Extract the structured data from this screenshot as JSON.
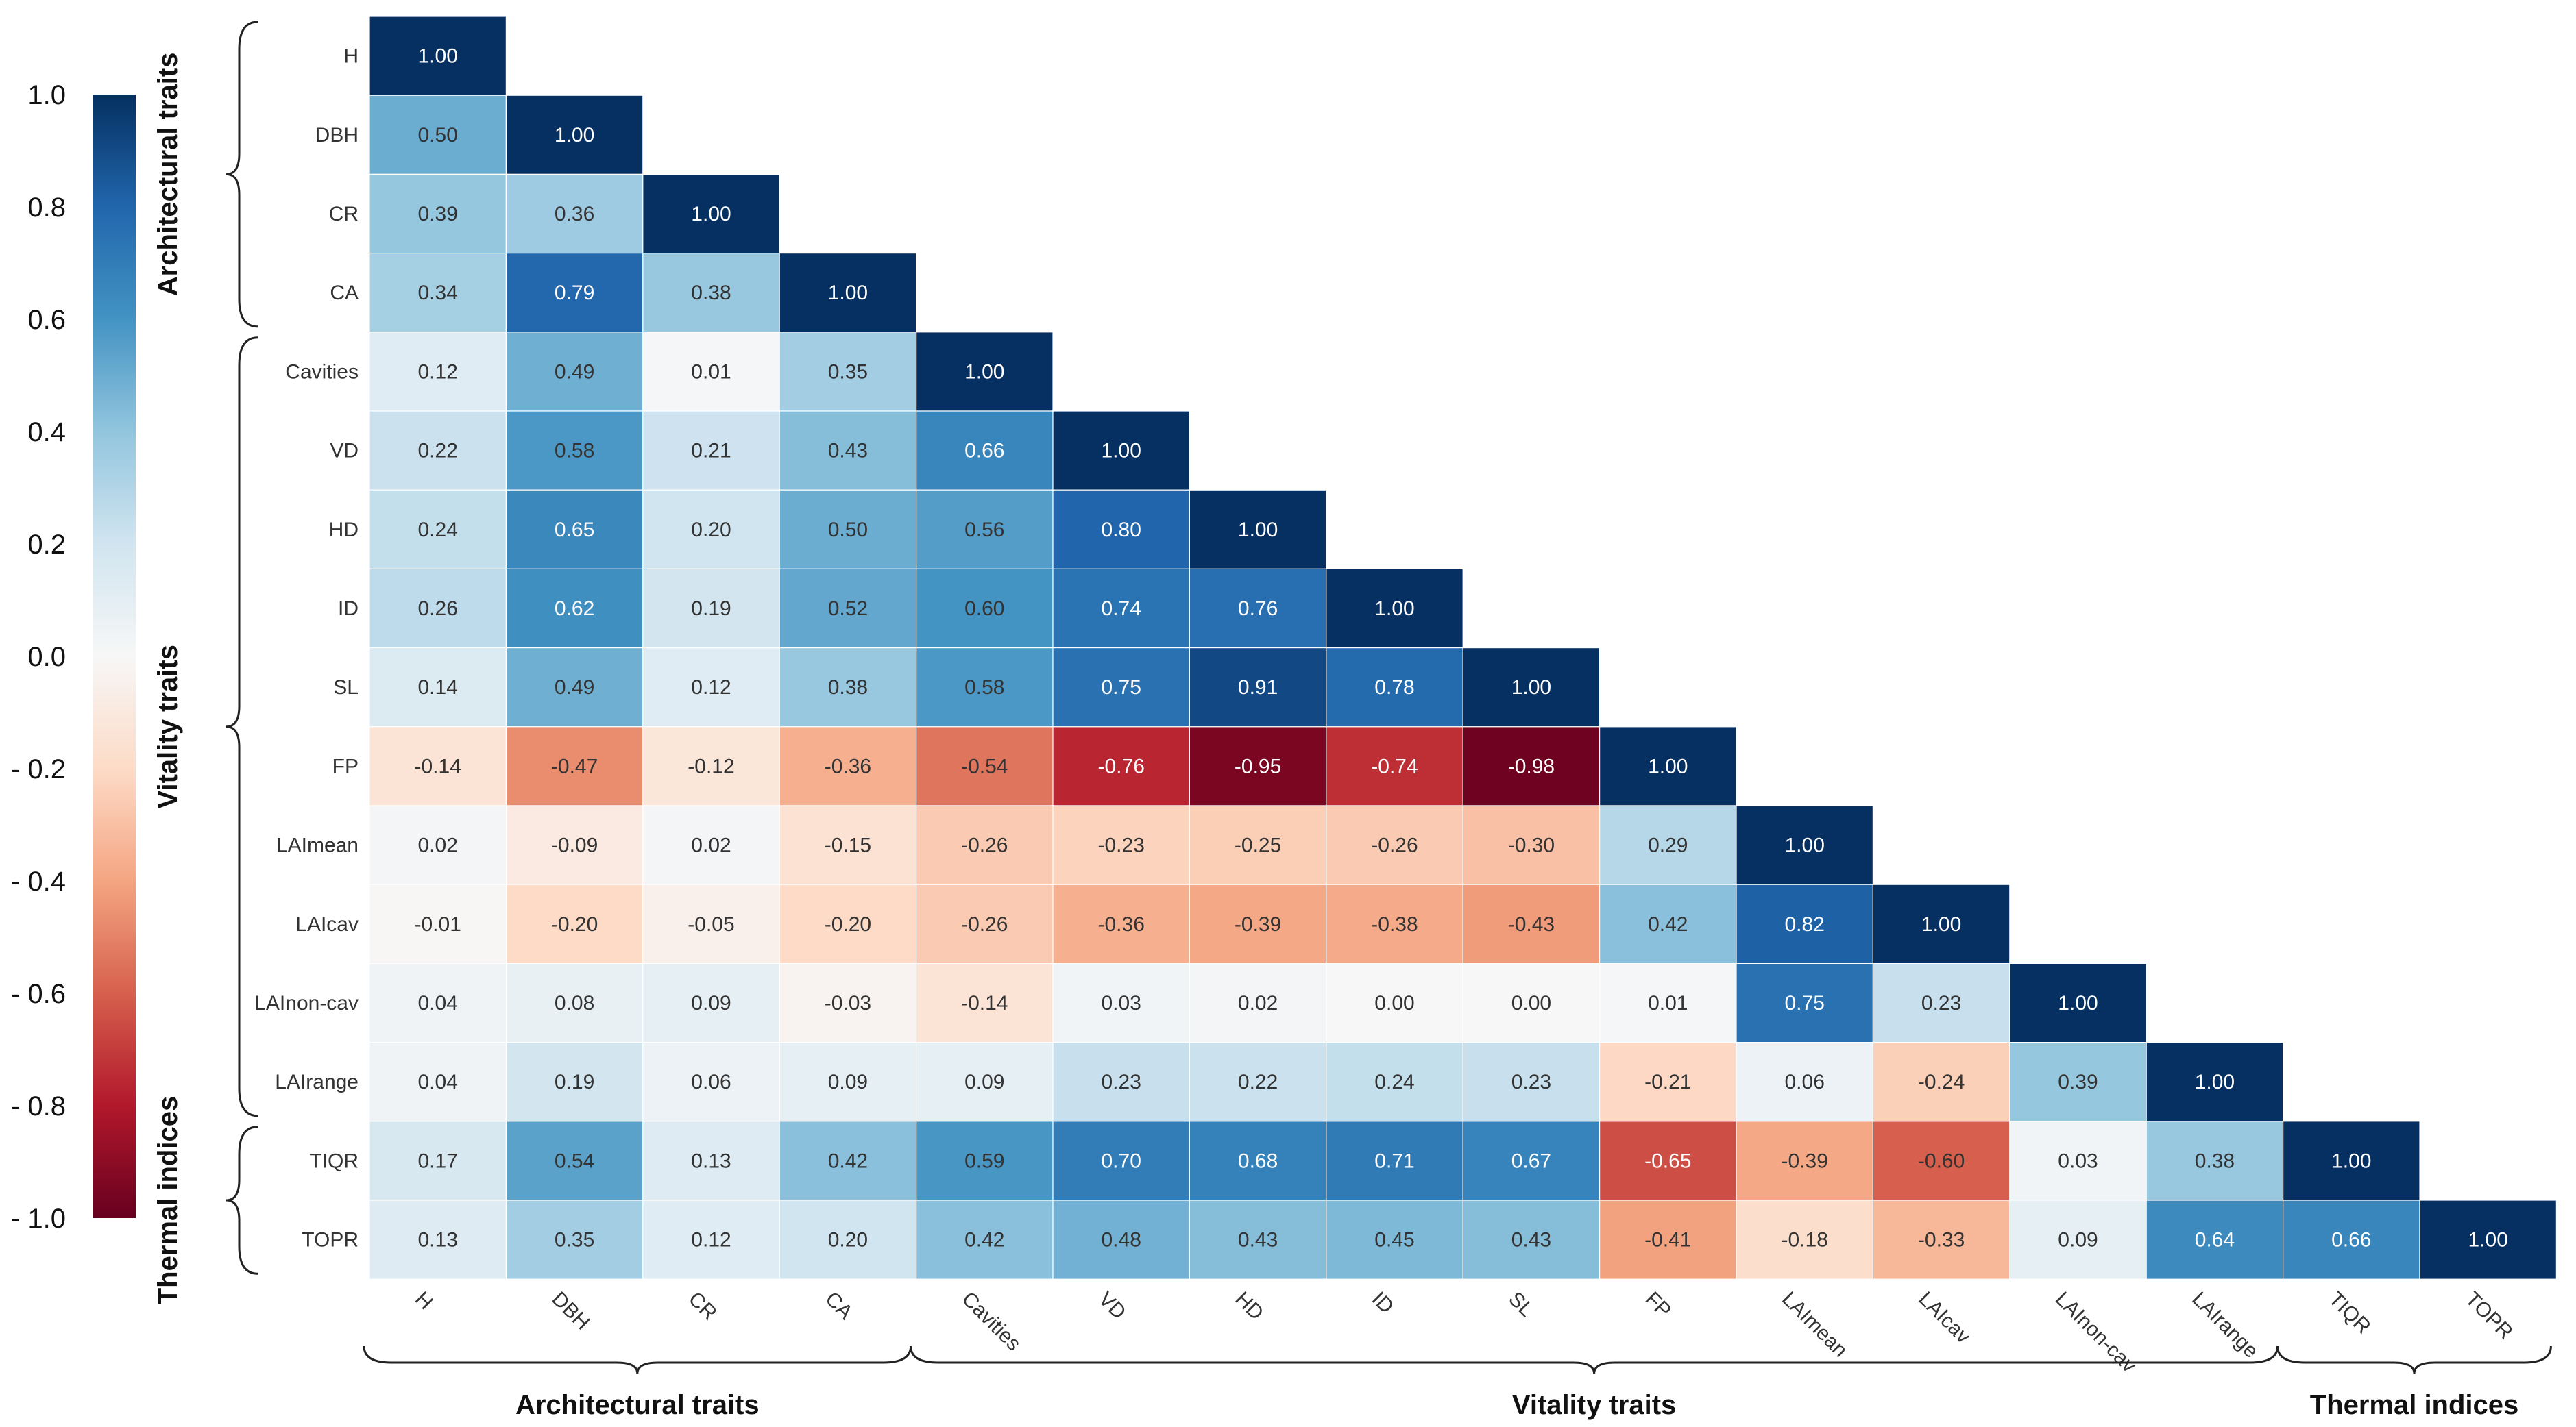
{
  "chart_data": {
    "type": "heatmap",
    "subtype": "lower-triangular correlation matrix",
    "variables": [
      "H",
      "DBH",
      "CR",
      "CA",
      "Cavities",
      "VD",
      "HD",
      "ID",
      "SL",
      "FP",
      "LAImean",
      "LAIcav",
      "LAInon-cav",
      "LAIrange",
      "TIQR",
      "TOPR"
    ],
    "matrix": [
      [
        "1.00"
      ],
      [
        "0.50",
        "1.00"
      ],
      [
        "0.39",
        "0.36",
        "1.00"
      ],
      [
        "0.34",
        "0.79",
        "0.38",
        "1.00"
      ],
      [
        "0.12",
        "0.49",
        "0.01",
        "0.35",
        "1.00"
      ],
      [
        "0.22",
        "0.58",
        "0.21",
        "0.43",
        "0.66",
        "1.00"
      ],
      [
        "0.24",
        "0.65",
        "0.20",
        "0.50",
        "0.56",
        "0.80",
        "1.00"
      ],
      [
        "0.26",
        "0.62",
        "0.19",
        "0.52",
        "0.60",
        "0.74",
        "0.76",
        "1.00"
      ],
      [
        "0.14",
        "0.49",
        "0.12",
        "0.38",
        "0.58",
        "0.75",
        "0.91",
        "0.78",
        "1.00"
      ],
      [
        "-0.14",
        "-0.47",
        "-0.12",
        "-0.36",
        "-0.54",
        "-0.76",
        "-0.95",
        "-0.74",
        "-0.98",
        "1.00"
      ],
      [
        "0.02",
        "-0.09",
        "0.02",
        "-0.15",
        "-0.26",
        "-0.23",
        "-0.25",
        "-0.26",
        "-0.30",
        "0.29",
        "1.00"
      ],
      [
        "-0.01",
        "-0.20",
        "-0.05",
        "-0.20",
        "-0.26",
        "-0.36",
        "-0.39",
        "-0.38",
        "-0.43",
        "0.42",
        "0.82",
        "1.00"
      ],
      [
        "0.04",
        "0.08",
        "0.09",
        "-0.03",
        "-0.14",
        "0.03",
        "0.02",
        "0.00",
        "0.00",
        "0.01",
        "0.75",
        "0.23",
        "1.00"
      ],
      [
        "0.04",
        "0.19",
        "0.06",
        "0.09",
        "0.09",
        "0.23",
        "0.22",
        "0.24",
        "0.23",
        "-0.21",
        "0.06",
        "-0.24",
        "0.39",
        "1.00"
      ],
      [
        "0.17",
        "0.54",
        "0.13",
        "0.42",
        "0.59",
        "0.70",
        "0.68",
        "0.71",
        "0.67",
        "-0.65",
        "-0.39",
        "-0.60",
        "0.03",
        "0.38",
        "1.00"
      ],
      [
        "0.13",
        "0.35",
        "0.12",
        "0.20",
        "0.42",
        "0.48",
        "0.43",
        "0.45",
        "0.43",
        "-0.41",
        "-0.18",
        "-0.33",
        "0.09",
        "0.64",
        "0.66",
        "1.00"
      ]
    ],
    "colorbar": {
      "min": -1.0,
      "max": 1.0,
      "tick_labels": [
        "1.0",
        "0.8",
        "0.6",
        "0.4",
        "0.2",
        "0.0",
        "- 0.2",
        "- 0.4",
        "- 0.6",
        "- 0.8",
        "- 1.0"
      ],
      "colors": {
        "negative": "#67001f",
        "neutral": "#f7f7f7",
        "positive": "#053061"
      }
    },
    "row_groups": [
      {
        "label": "Architectural traits",
        "first": 0,
        "last": 3
      },
      {
        "label": "Vitality traits",
        "first": 4,
        "last": 13
      },
      {
        "label": "Thermal indices",
        "first": 14,
        "last": 15
      }
    ],
    "column_groups": [
      {
        "label": "Architectural traits",
        "first": 0,
        "last": 3
      },
      {
        "label": "Vitality traits",
        "first": 4,
        "last": 13
      },
      {
        "label": "Thermal indices",
        "first": 14,
        "last": 15
      }
    ]
  }
}
